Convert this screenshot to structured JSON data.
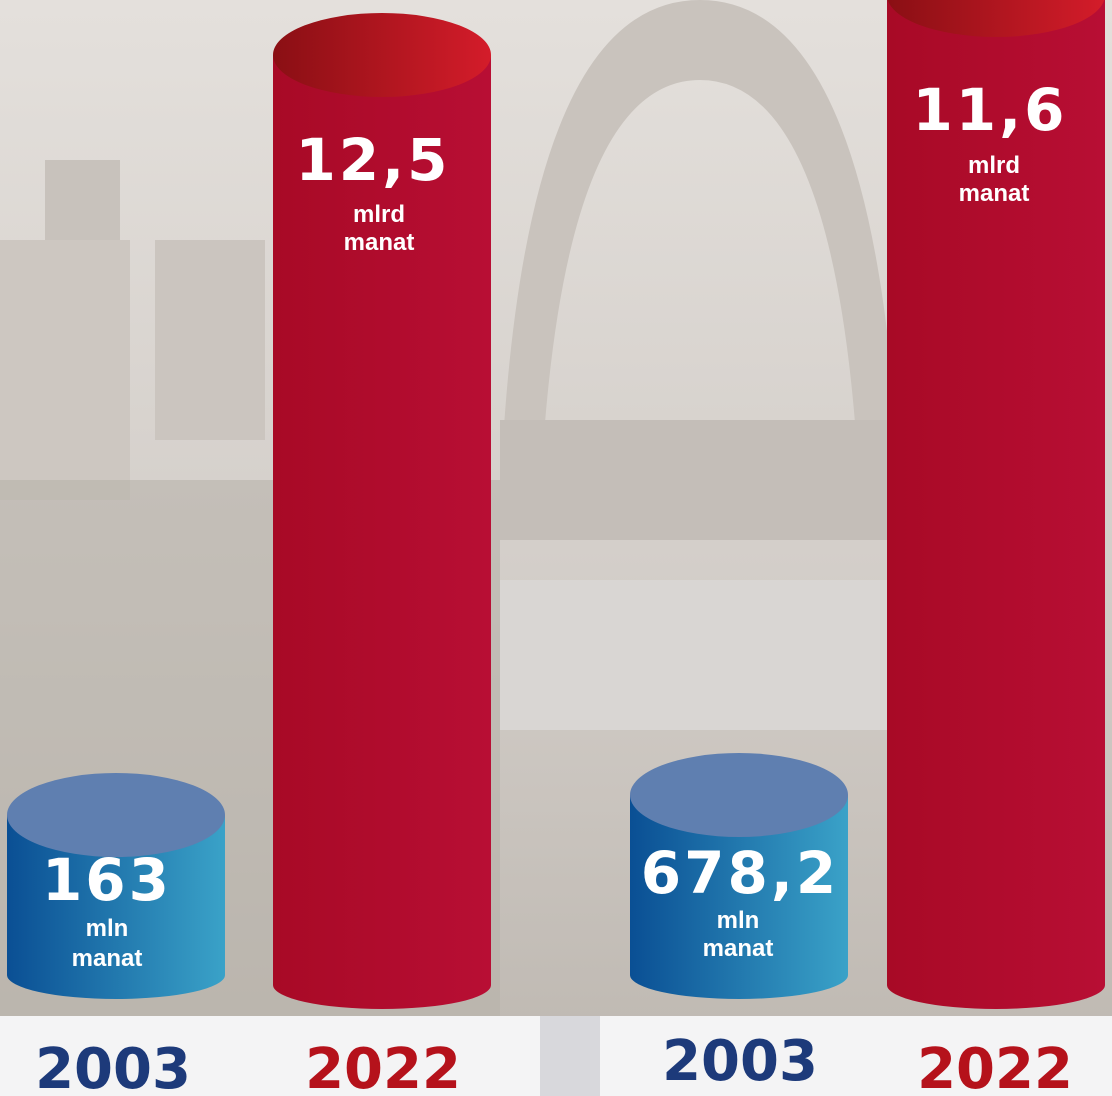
{
  "panels": [
    {
      "items": [
        {
          "year": "2003",
          "value": "163",
          "unit": [
            "mln",
            "manat"
          ]
        },
        {
          "year": "2022",
          "value": "12,5",
          "unit": [
            "mlrd",
            "manat"
          ]
        }
      ]
    },
    {
      "items": [
        {
          "year": "2003",
          "value": "678,2",
          "unit": [
            "mln",
            "manat"
          ]
        },
        {
          "year": "2022",
          "value": "11,6",
          "unit": [
            "mlrd",
            "manat"
          ]
        }
      ]
    }
  ]
}
